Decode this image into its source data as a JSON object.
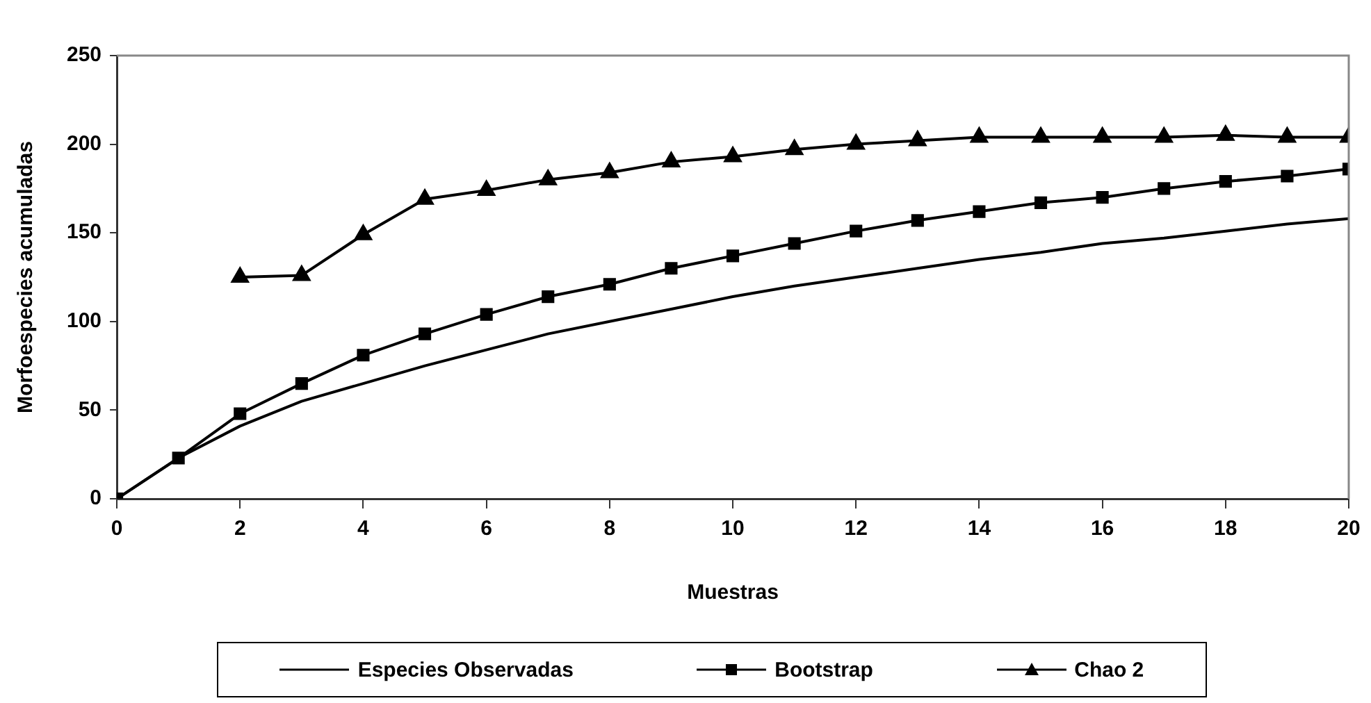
{
  "chart_data": {
    "type": "line",
    "xlabel": "Muestras",
    "ylabel": "Morfoespecies acumuladas",
    "x": [
      0,
      1,
      2,
      3,
      4,
      5,
      6,
      7,
      8,
      9,
      10,
      11,
      12,
      13,
      14,
      15,
      16,
      17,
      18,
      19,
      20
    ],
    "xlim": [
      0,
      20
    ],
    "xticks": [
      0,
      2,
      4,
      6,
      8,
      10,
      12,
      14,
      16,
      18,
      20
    ],
    "ylim": [
      0,
      250
    ],
    "yticks": [
      0,
      50,
      100,
      150,
      200,
      250
    ],
    "grid": false,
    "legend": "bottom",
    "line_style": "solid",
    "series": [
      {
        "name": "Especies Observadas",
        "color": "#000000",
        "marker": "none",
        "values": [
          0,
          23,
          41,
          55,
          65,
          75,
          84,
          93,
          100,
          107,
          114,
          120,
          125,
          130,
          135,
          139,
          144,
          147,
          151,
          155,
          158
        ]
      },
      {
        "name": "Bootstrap",
        "color": "#000000",
        "marker": "square",
        "values": [
          0,
          23,
          48,
          65,
          81,
          93,
          104,
          114,
          121,
          130,
          137,
          144,
          151,
          157,
          162,
          167,
          170,
          175,
          179,
          182,
          186
        ]
      },
      {
        "name": "Chao 2",
        "color": "#000000",
        "marker": "triangle",
        "x": [
          2,
          3,
          4,
          5,
          6,
          7,
          8,
          9,
          10,
          11,
          12,
          13,
          14,
          15,
          16,
          17,
          18,
          19,
          20
        ],
        "values": [
          125,
          126,
          149,
          169,
          174,
          180,
          184,
          190,
          193,
          197,
          200,
          202,
          204,
          204,
          204,
          204,
          205,
          204,
          204
        ]
      }
    ]
  }
}
